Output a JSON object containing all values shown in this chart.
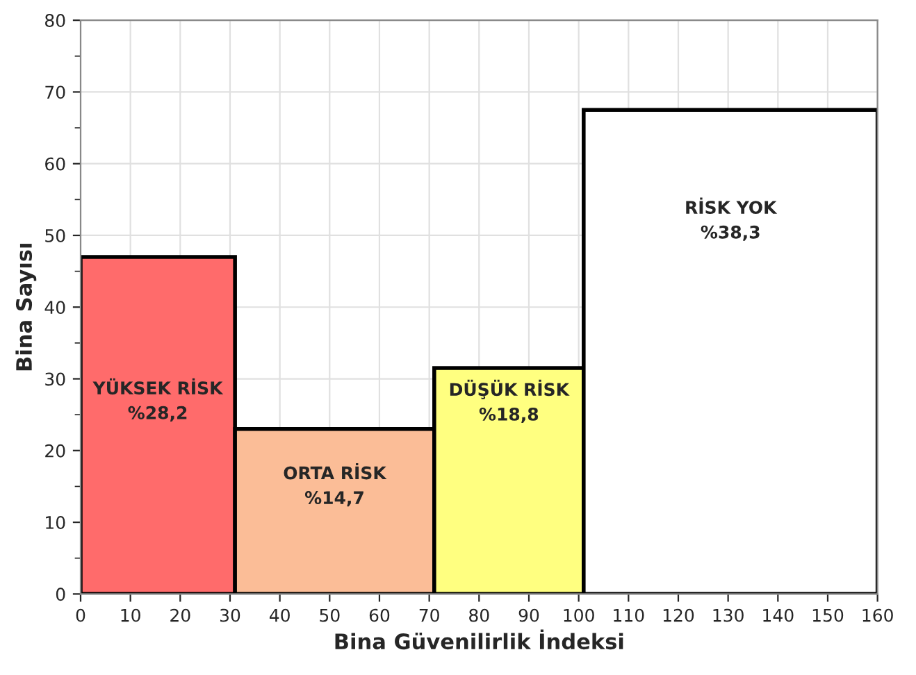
{
  "chart_data": {
    "type": "histogram",
    "xlabel": "Bina Güvenilirlik İndeksi",
    "ylabel": "Bina Sayısı",
    "bins": [
      0,
      31,
      71,
      101,
      160
    ],
    "values": [
      47,
      23,
      31.5,
      67.5
    ],
    "colors": [
      "#ff6b6b",
      "#fbbd97",
      "#ffff80",
      "#ffffff"
    ],
    "xlim": [
      0,
      160
    ],
    "ylim": [
      0,
      80
    ],
    "xticks": [
      0,
      10,
      20,
      30,
      40,
      50,
      60,
      70,
      80,
      90,
      100,
      110,
      120,
      130,
      140,
      150,
      160
    ],
    "yticks": [
      0,
      10,
      20,
      30,
      40,
      50,
      60,
      70,
      80
    ],
    "grid": true,
    "annotations": [
      "YÜKSEK RİSK\n%28,2",
      "ORTA RİSK\n%14,7",
      "DÜŞÜK RİSK\n%18,8",
      "RİSK YOK\n%38,3"
    ]
  }
}
